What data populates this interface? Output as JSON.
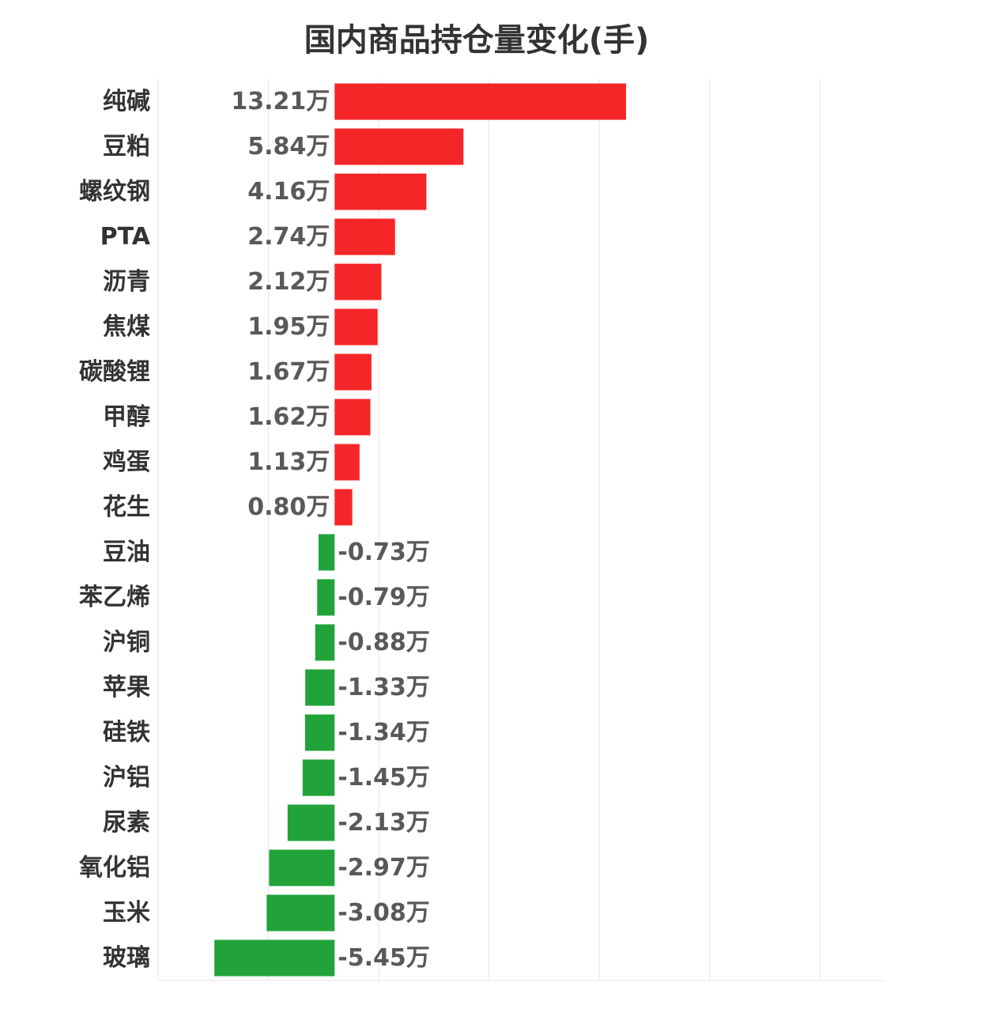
{
  "chart_data": {
    "type": "bar",
    "orientation": "horizontal",
    "title": "国内商品持仓量变化(手)",
    "unit_suffix": "万",
    "xlim": [
      -8,
      25
    ],
    "grid": true,
    "categories": [
      "纯碱",
      "豆粕",
      "螺纹钢",
      "PTA",
      "沥青",
      "焦煤",
      "碳酸锂",
      "甲醇",
      "鸡蛋",
      "花生",
      "豆油",
      "苯乙烯",
      "沪铜",
      "苹果",
      "硅铁",
      "沪铝",
      "尿素",
      "氧化铝",
      "玉米",
      "玻璃"
    ],
    "values": [
      13.21,
      5.84,
      4.16,
      2.74,
      2.12,
      1.95,
      1.67,
      1.62,
      1.13,
      0.8,
      -0.73,
      -0.79,
      -0.88,
      -1.33,
      -1.34,
      -1.45,
      -2.13,
      -2.97,
      -3.08,
      -5.45
    ],
    "value_labels": [
      "13.21万",
      "5.84万",
      "4.16万",
      "2.74万",
      "2.12万",
      "1.95万",
      "1.67万",
      "1.62万",
      "1.13万",
      "0.80万",
      "-0.73万",
      "-0.79万",
      "-0.88万",
      "-1.33万",
      "-1.34万",
      "-1.45万",
      "-2.13万",
      "-2.97万",
      "-3.08万",
      "-5.45万"
    ],
    "colors": {
      "positive": "#f52628",
      "negative": "#21a33a",
      "grid": "#e6e6e6"
    }
  }
}
